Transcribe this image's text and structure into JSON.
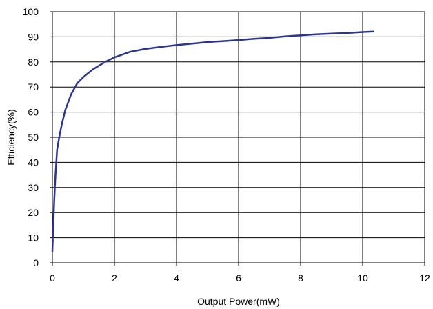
{
  "chart_data": {
    "type": "line",
    "xlabel": "Output Power(mW)",
    "ylabel": "Efficiency(%)",
    "xlim": [
      0,
      12
    ],
    "ylim": [
      0,
      100
    ],
    "x_ticks": [
      "0",
      "2",
      "4",
      "6",
      "8",
      "10",
      "12"
    ],
    "y_ticks": [
      "0",
      "10",
      "20",
      "30",
      "40",
      "50",
      "60",
      "70",
      "80",
      "90",
      "100"
    ],
    "grid": true,
    "legend": "none",
    "series": [
      {
        "color": "#2b3590",
        "x": [
          0.0,
          0.03,
          0.06,
          0.1,
          0.15,
          0.22,
          0.3,
          0.42,
          0.6,
          0.8,
          1.0,
          1.3,
          1.7,
          2.0,
          2.5,
          3.0,
          3.5,
          4.0,
          4.5,
          5.0,
          5.5,
          6.0,
          6.5,
          7.0,
          7.5,
          8.0,
          8.5,
          9.0,
          9.5,
          10.0,
          10.35
        ],
        "y": [
          4.5,
          15,
          25,
          35,
          45,
          50,
          55,
          61,
          67,
          71.5,
          74,
          77,
          80,
          81.8,
          84,
          85.2,
          86,
          86.7,
          87.3,
          87.9,
          88.3,
          88.7,
          89.2,
          89.6,
          90.2,
          90.6,
          91,
          91.3,
          91.5,
          91.9,
          92.1
        ]
      }
    ]
  }
}
